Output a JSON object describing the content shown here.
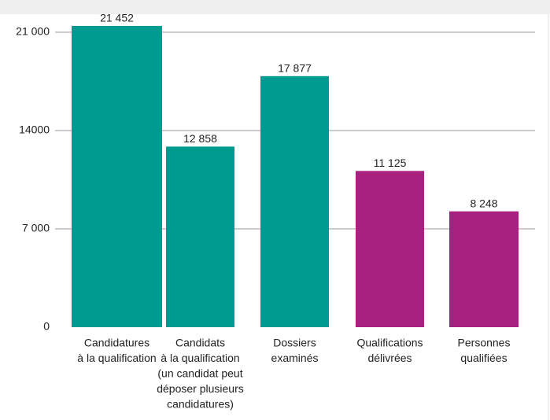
{
  "chart_data": {
    "type": "bar",
    "categories": [
      [
        "Candidatures",
        "à la qualification"
      ],
      [
        "Candidats",
        "à la qualification",
        "(un candidat peut",
        "déposer plusieurs",
        "candidatures)"
      ],
      [
        "Dossiers",
        "examinés"
      ],
      [
        "Qualifications",
        "délivrées"
      ],
      [
        "Personnes",
        "qualifiées"
      ]
    ],
    "values": [
      21452,
      12858,
      17877,
      11125,
      8248
    ],
    "value_labels": [
      "21 452",
      "12 858",
      "17 877",
      "11 125",
      "8 248"
    ],
    "colors": [
      "#009b90",
      "#009b90",
      "#009b90",
      "#a8217f",
      "#a8217f"
    ],
    "ylim": [
      0,
      21000
    ],
    "yticks": [
      0,
      {
        "value": 7000,
        "label": "7 000"
      },
      14000,
      {
        "value": 21000,
        "label": "21 000"
      }
    ],
    "grid": true
  }
}
